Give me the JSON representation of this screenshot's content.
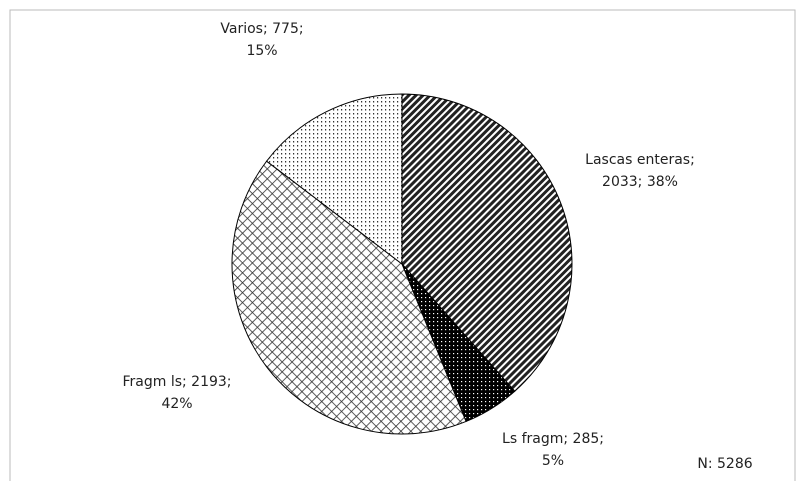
{
  "chart_data": {
    "type": "pie",
    "values": [
      2033,
      285,
      2193,
      775
    ],
    "value_labels": [
      "Lascas enteras; 2033; 38%",
      "Ls fragm; 285; 5%",
      "Fragm ls; 2193; 42%",
      "Varios; 775; 15%"
    ],
    "annotation": "N: 5286"
  }
}
